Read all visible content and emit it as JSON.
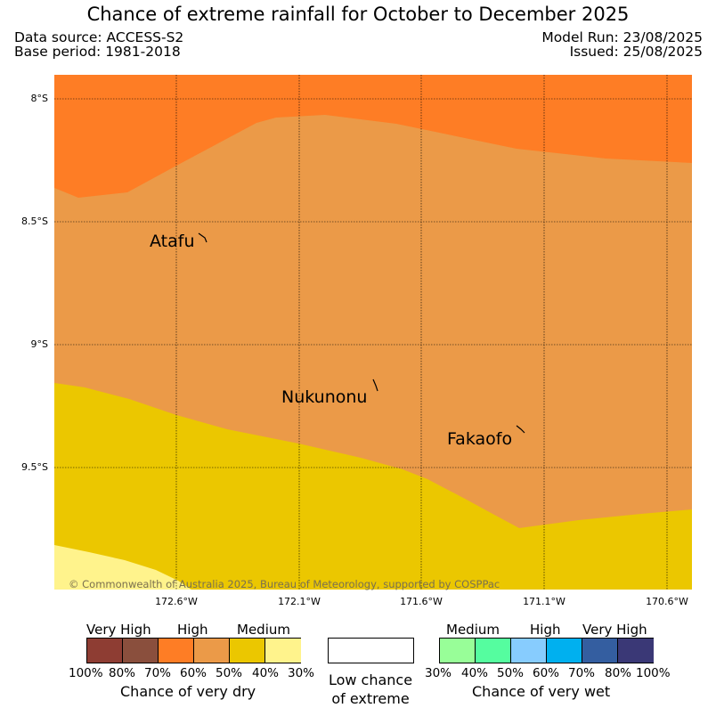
{
  "header": {
    "title": "Chance of extreme rainfall for October to December 2025",
    "data_source": "Data source: ACCESS-S2",
    "base_period": "Base period: 1981-2018",
    "model_run": "Model Run: 23/08/2025",
    "issued": "Issued: 25/08/2025"
  },
  "map": {
    "lat_labels": [
      "8°S",
      "8.5°S",
      "9°S",
      "9.5°S"
    ],
    "lon_labels": [
      "172.6°W",
      "172.1°W",
      "171.6°W",
      "171.1°W",
      "170.6°W"
    ],
    "places": [
      "Atafu",
      "Nukunonu",
      "Fakaofo"
    ],
    "copyright": "© Commonwealth of Australia 2025, Bureau of Meteorology, supported by COSPPac",
    "region_colors": {
      "very_high_dry": "#fe7d25",
      "high_dry": "#eb9a48",
      "medium_dry": "#ebc700",
      "low_dry": "#fff38c"
    }
  },
  "legend": {
    "dry": {
      "headers": [
        "Very High",
        "High",
        "Medium"
      ],
      "ticks": [
        "100%",
        "80%",
        "70%",
        "60%",
        "50%",
        "40%",
        "30%"
      ],
      "title": "Chance of very dry",
      "colors": [
        "#8e3d33",
        "#8a4f3d",
        "#fe7d25",
        "#eb9a48",
        "#ebc700",
        "#fff38c"
      ]
    },
    "low": {
      "label": "Low chance of extreme",
      "color": "#ffffff"
    },
    "wet": {
      "headers": [
        "Medium",
        "High",
        "Very High"
      ],
      "ticks": [
        "30%",
        "40%",
        "50%",
        "60%",
        "70%",
        "80%",
        "100%"
      ],
      "title": "Chance of very wet",
      "colors": [
        "#98fe98",
        "#55fd9f",
        "#87ccfe",
        "#00b0ef",
        "#345ea0",
        "#3a3876"
      ]
    }
  }
}
